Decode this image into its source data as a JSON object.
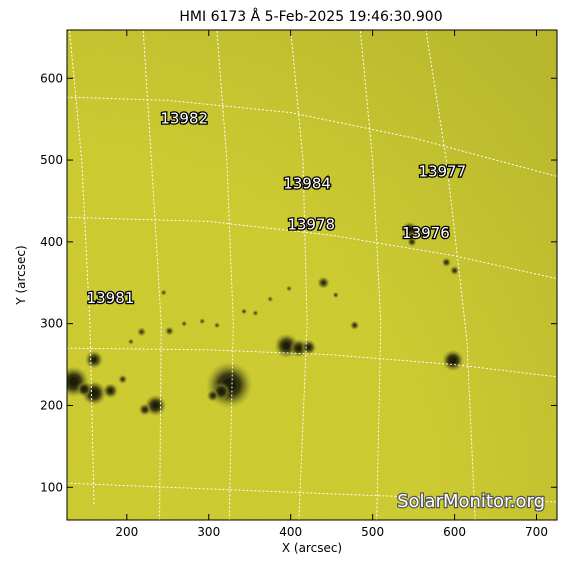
{
  "chart_data": {
    "type": "heatmap",
    "title": "HMI 6173 Å  5-Feb-2025 19:46:30.900",
    "xlabel": "X (arcsec)",
    "ylabel": "Y (arcsec)",
    "xlim": [
      127,
      725
    ],
    "ylim": [
      60,
      659
    ],
    "xticks": [
      200,
      300,
      400,
      500,
      600,
      700
    ],
    "yticks": [
      100,
      200,
      300,
      400,
      500,
      600
    ],
    "grid": "dotted heliographic grid",
    "colors": {
      "background": "#d2d030",
      "spot_dark": "#1c1c08",
      "penumbra": "#7a7a24"
    },
    "active_regions": [
      {
        "label": "13982",
        "x": 270,
        "y": 545
      },
      {
        "label": "13984",
        "x": 420,
        "y": 465
      },
      {
        "label": "13977",
        "x": 585,
        "y": 480
      },
      {
        "label": "13978",
        "x": 425,
        "y": 415
      },
      {
        "label": "13976",
        "x": 565,
        "y": 405
      },
      {
        "label": "13981",
        "x": 180,
        "y": 325
      }
    ],
    "sunspots": [
      {
        "x": 325,
        "y": 225,
        "r": 15,
        "dark": 0.95
      },
      {
        "x": 315,
        "y": 217,
        "r": 6,
        "dark": 0.8
      },
      {
        "x": 305,
        "y": 212,
        "r": 4,
        "dark": 0.7
      },
      {
        "x": 135,
        "y": 229,
        "r": 10,
        "dark": 0.95
      },
      {
        "x": 160,
        "y": 215,
        "r": 8,
        "dark": 0.95
      },
      {
        "x": 148,
        "y": 220,
        "r": 5,
        "dark": 0.85
      },
      {
        "x": 160,
        "y": 256,
        "r": 6,
        "dark": 0.8
      },
      {
        "x": 180,
        "y": 218,
        "r": 5,
        "dark": 0.8
      },
      {
        "x": 195,
        "y": 232,
        "r": 3,
        "dark": 0.6
      },
      {
        "x": 235,
        "y": 200,
        "r": 7,
        "dark": 0.9
      },
      {
        "x": 222,
        "y": 195,
        "r": 4,
        "dark": 0.75
      },
      {
        "x": 395,
        "y": 273,
        "r": 8,
        "dark": 0.9
      },
      {
        "x": 410,
        "y": 270,
        "r": 6,
        "dark": 0.85
      },
      {
        "x": 422,
        "y": 271,
        "r": 5,
        "dark": 0.8
      },
      {
        "x": 598,
        "y": 255,
        "r": 7,
        "dark": 0.95
      },
      {
        "x": 545,
        "y": 415,
        "r": 5,
        "dark": 0.9
      },
      {
        "x": 548,
        "y": 400,
        "r": 3,
        "dark": 0.7
      },
      {
        "x": 590,
        "y": 375,
        "r": 3,
        "dark": 0.7
      },
      {
        "x": 600,
        "y": 365,
        "r": 3,
        "dark": 0.65
      },
      {
        "x": 440,
        "y": 350,
        "r": 4,
        "dark": 0.7
      },
      {
        "x": 455,
        "y": 335,
        "r": 2,
        "dark": 0.55
      },
      {
        "x": 478,
        "y": 298,
        "r": 3,
        "dark": 0.65
      },
      {
        "x": 343,
        "y": 315,
        "r": 2,
        "dark": 0.55
      },
      {
        "x": 252,
        "y": 291,
        "r": 3,
        "dark": 0.6
      },
      {
        "x": 270,
        "y": 300,
        "r": 2,
        "dark": 0.5
      },
      {
        "x": 292,
        "y": 303,
        "r": 2,
        "dark": 0.5
      },
      {
        "x": 310,
        "y": 298,
        "r": 2,
        "dark": 0.5
      },
      {
        "x": 357,
        "y": 313,
        "r": 2,
        "dark": 0.5
      },
      {
        "x": 218,
        "y": 290,
        "r": 3,
        "dark": 0.55
      },
      {
        "x": 205,
        "y": 278,
        "r": 2,
        "dark": 0.5
      },
      {
        "x": 245,
        "y": 338,
        "r": 2,
        "dark": 0.5
      },
      {
        "x": 375,
        "y": 330,
        "r": 2,
        "dark": 0.45
      },
      {
        "x": 398,
        "y": 343,
        "r": 2,
        "dark": 0.45
      }
    ],
    "latitude_lines": [
      [
        [
          127,
          270
        ],
        [
          300,
          268
        ],
        [
          450,
          262
        ],
        [
          600,
          250
        ],
        [
          725,
          235
        ]
      ],
      [
        [
          127,
          430
        ],
        [
          300,
          425
        ],
        [
          450,
          408
        ],
        [
          600,
          383
        ],
        [
          725,
          355
        ]
      ],
      [
        [
          127,
          577
        ],
        [
          250,
          573
        ],
        [
          400,
          558
        ],
        [
          550,
          527
        ],
        [
          725,
          480
        ]
      ],
      [
        [
          127,
          105
        ],
        [
          300,
          98
        ],
        [
          500,
          90
        ],
        [
          725,
          82
        ]
      ]
    ],
    "longitude_lines": [
      [
        [
          160,
          80
        ],
        [
          155,
          300
        ],
        [
          145,
          500
        ],
        [
          130,
          659
        ]
      ],
      [
        [
          240,
          60
        ],
        [
          242,
          300
        ],
        [
          230,
          500
        ],
        [
          220,
          659
        ]
      ],
      [
        [
          325,
          60
        ],
        [
          330,
          300
        ],
        [
          322,
          500
        ],
        [
          310,
          659
        ]
      ],
      [
        [
          410,
          60
        ],
        [
          420,
          300
        ],
        [
          415,
          500
        ],
        [
          400,
          659
        ]
      ],
      [
        [
          505,
          60
        ],
        [
          510,
          300
        ],
        [
          500,
          500
        ],
        [
          485,
          659
        ]
      ],
      [
        [
          625,
          60
        ],
        [
          615,
          280
        ],
        [
          590,
          500
        ],
        [
          565,
          659
        ]
      ]
    ]
  },
  "watermark": "SolarMonitor.org"
}
